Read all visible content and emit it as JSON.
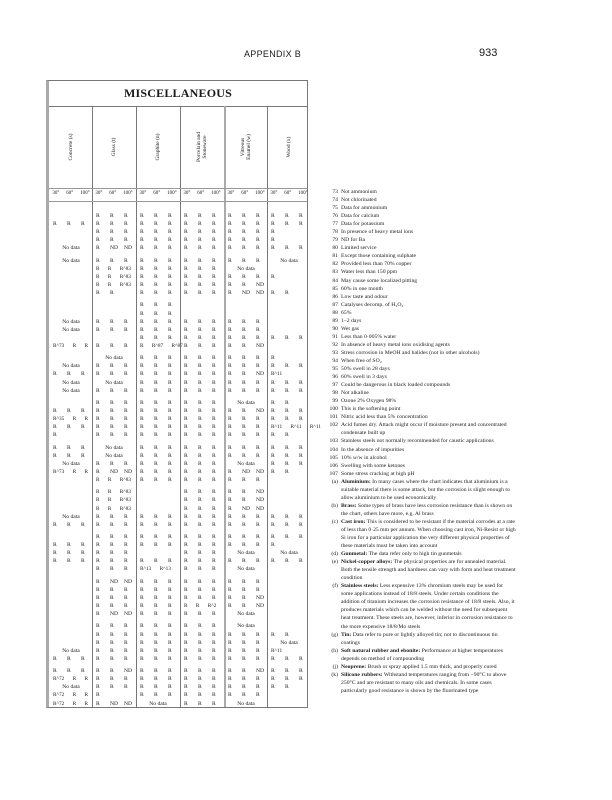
{
  "header": {
    "section": "APPENDIX   B",
    "page": "933"
  },
  "table": {
    "title": "MISCELLANEOUS",
    "columns": [
      "Concrete (s)",
      "Glass (t)",
      "Graphite (n)",
      "Porcelain and\nStoneware",
      "Vitreous\nEnamel (w)",
      "Wood (x)"
    ],
    "temperatures": [
      "30°",
      "60°",
      "100°"
    ],
    "rows": [
      [
        "",
        "R R R",
        "R R R",
        "R R R",
        "R R R",
        "R R R"
      ],
      [
        "R R R",
        "R R R",
        "R R R",
        "R R R",
        "R R R",
        "R R R"
      ],
      [
        "",
        "R R R",
        "R R R",
        "R R R",
        "R R R",
        "R"
      ],
      [
        "",
        "R R R",
        "R R R",
        "R R R",
        "R R R",
        "R"
      ],
      [
        "No data",
        "R ND ND",
        "R R R",
        "R R R",
        "R R R",
        "R R R"
      ],
      [
        "No data",
        "R R R",
        "R R R",
        "R R R",
        "R R R",
        "No data"
      ],
      [
        "",
        "R R R^83",
        "R R R",
        "R R R",
        "No data",
        ""
      ],
      [
        "",
        "R R R^83",
        "R R R",
        "R R R",
        "R R R",
        "R"
      ],
      [
        "",
        "R R R^83",
        "R R R",
        "R R R",
        "R R ND",
        ""
      ],
      [
        "",
        "R R",
        "R R R",
        "R R R",
        "R ND ND",
        "R R"
      ],
      [
        "",
        "",
        "R R R",
        "",
        "",
        ""
      ],
      [
        "",
        "",
        "R R R",
        "",
        "",
        ""
      ],
      [
        "No data",
        "R R R",
        "R R R",
        "R R R",
        "R R R",
        ""
      ],
      [
        "No data",
        "R R R",
        "R R R",
        "R R R",
        "R R R",
        ""
      ],
      [
        "",
        "",
        "R R R",
        "R R R",
        "R R R",
        "R R R"
      ],
      [
        "R^73 R R",
        "R R R",
        "R R^87 R^87",
        "R R R",
        "R R ND",
        ""
      ],
      [
        "",
        "No data",
        "R R R",
        "R R R",
        "R R R",
        "R"
      ],
      [
        "No data",
        "R R R",
        "R R R",
        "R R R",
        "R R R",
        "R R R"
      ],
      [
        "R R R",
        "R R R",
        "R R R",
        "R R R",
        "R R ND",
        "R^11"
      ],
      [
        "No data",
        "No data",
        "R R R",
        "R R R",
        "R R R",
        "R R R"
      ],
      [
        "No data",
        "R R R",
        "R R R",
        "R R R",
        "R R R",
        "R R R"
      ],
      [
        "",
        "R R R",
        "R R R",
        "R R R",
        "No data",
        "R R"
      ],
      [
        "R R R",
        "R R R",
        "R R R",
        "R R R",
        "R R ND",
        "R R R"
      ],
      [
        "R^35 R R",
        "R R R",
        "R R R",
        "R R R",
        "R R R",
        "R R R"
      ],
      [
        "R R R",
        "R R R",
        "R R R",
        "R R R",
        "R R R",
        "R^11 R^11 R^11"
      ],
      [
        "R",
        "R R R",
        "R R R",
        "R R R",
        "R R R",
        "R R"
      ],
      [
        "R R R",
        "No data",
        "R R R",
        "R R R",
        "R R R",
        "R R R"
      ],
      [
        "R R R",
        "No data",
        "R R R",
        "R R R",
        "R R R",
        "R R R"
      ],
      [
        "No data",
        "R R R",
        "R R R",
        "R R R",
        "No data",
        "R R R"
      ],
      [
        "R^73 R R",
        "R ND ND",
        "R R R",
        "R R R",
        "R ND ND",
        "R R"
      ],
      [
        "",
        "R R R^83",
        "R R R",
        "R R R",
        "R R R",
        ""
      ],
      [
        "",
        "R R R^83",
        "",
        "R R R",
        "R R ND",
        ""
      ],
      [
        "",
        "R R R^83",
        "",
        "R R R",
        "R R ND",
        ""
      ],
      [
        "",
        "R R R^83",
        "",
        "R R R",
        "R ND ND",
        ""
      ],
      [
        "No data",
        "R R R",
        "R R R",
        "R R R",
        "R R R",
        "R R R"
      ],
      [
        "R R R",
        "R R R",
        "R R R",
        "R R R",
        "R R R",
        "R R R"
      ],
      [
        "",
        "R R R",
        "R R R",
        "R R R",
        "R R R",
        "R R R"
      ],
      [
        "R R R",
        "R R R",
        "R R R",
        "R R R",
        "R R R",
        "R"
      ],
      [
        "R R R",
        "R R R",
        "",
        "R R R",
        "No data",
        "No data"
      ],
      [
        "R R R",
        "R R R",
        "R R R",
        "R R R",
        "R R R",
        "R R R"
      ],
      [
        "",
        "R R R",
        "R^13 R^13",
        "R R R",
        "No data",
        ""
      ],
      [
        "",
        "R ND ND",
        "R R R",
        "R R R",
        "R R R",
        ""
      ],
      [
        "",
        "R R R",
        "R R R",
        "R R R",
        "R R R",
        ""
      ],
      [
        "",
        "R R R",
        "R R R",
        "R R R",
        "R R ND",
        ""
      ],
      [
        "",
        "R R R",
        "R R R",
        "R R R^2",
        "R R ND",
        ""
      ],
      [
        "",
        "R ND ND",
        "R R R",
        "R R R",
        "No data",
        ""
      ],
      [
        "",
        "R R R",
        "R R R",
        "R R R",
        "No data",
        ""
      ],
      [
        "",
        "R R R",
        "R R R",
        "R R R",
        "R R R",
        "R R"
      ],
      [
        "",
        "R R R",
        "R R R",
        "R R R",
        "R R R",
        "No data"
      ],
      [
        "No data",
        "R R R",
        "R R R",
        "R R R",
        "R R R",
        "R^11"
      ],
      [
        "R R R",
        "R R R",
        "R R R",
        "R R R",
        "R R R",
        "R R R"
      ],
      [
        "R R R",
        "R R ND",
        "R R R",
        "R R R",
        "R R ND",
        "R R R"
      ],
      [
        "R^72 R R",
        "R R R",
        "R R R",
        "R R R",
        "R R R",
        "R R R"
      ],
      [
        "No data",
        "R R R",
        "R R R",
        "R R R",
        "R R R",
        "R R"
      ],
      [
        "R^72 R R",
        "R",
        "R R R",
        "R R R",
        "R R R",
        ""
      ],
      [
        "R^72 R R",
        "R ND ND",
        "No data",
        "R R R",
        "No data",
        ""
      ]
    ]
  },
  "notes": [
    {
      "n": "73",
      "t": "Not ammonium"
    },
    {
      "n": "74",
      "t": "Not chlorinated"
    },
    {
      "n": "75",
      "t": "Data for ammonium"
    },
    {
      "n": "76",
      "t": "Data for calcium"
    },
    {
      "n": "77",
      "t": "Data for potassium"
    },
    {
      "n": "78",
      "t": "In presence of heavy metal ions"
    },
    {
      "n": "79",
      "t": "ND for Ba"
    },
    {
      "n": "80",
      "t": "Limited service"
    },
    {
      "n": "81",
      "t": "Except those containing sulphate"
    },
    {
      "n": "82",
      "t": "Provided less than 70% copper"
    },
    {
      "n": "83",
      "t": "Water less than 150 ppm"
    },
    {
      "n": "84",
      "t": "May cause some localized pitting"
    },
    {
      "n": "85",
      "t": "60% in one month"
    },
    {
      "n": "86",
      "t": "Low taste and odour"
    },
    {
      "n": "87",
      "t": "Catalyses decomp. of H₂O₂"
    },
    {
      "n": "88",
      "t": "65%"
    },
    {
      "n": "89",
      "t": "1–2 days"
    },
    {
      "n": "90",
      "t": "Wet gas"
    },
    {
      "n": "91",
      "t": "Less than 0·005% water"
    },
    {
      "n": "92",
      "t": "In absence of heavy metal ions oxidising agents"
    },
    {
      "n": "93",
      "t": "Stress corrosion in MeOH and halides (not in other alcohols)"
    },
    {
      "n": "94",
      "t": "When free of SO₂"
    },
    {
      "n": "95",
      "t": "50% swell in 28 days"
    },
    {
      "n": "96",
      "t": "60% swell in 3 days"
    },
    {
      "n": "97",
      "t": "Could be dangerous in black loaded compounds"
    },
    {
      "n": "98",
      "t": "Not alkaline"
    },
    {
      "n": "99",
      "t": "Ozone 2% Oxygen 98%"
    },
    {
      "n": "100",
      "t": "This is the softening point"
    },
    {
      "n": "101",
      "t": "Nitric acid less than 5% concentration"
    },
    {
      "n": "102",
      "t": "Acid fumes dry. Attack might occur if moisture present and concentrated condensate built up"
    },
    {
      "n": "103",
      "t": "Stainless steels not normally recommended for caustic applications"
    },
    {
      "n": "104",
      "t": "In the absence of impurities"
    },
    {
      "n": "105",
      "t": "10% w/w in alcohol"
    },
    {
      "n": "106",
      "t": "Swelling with some ketones"
    },
    {
      "n": "107",
      "t": "Some stress cracking at high pH"
    },
    {
      "n": "(a)",
      "b": "Aluminium:",
      "t": "In many cases where the chart indicates that aluminium is a suitable material there is some attack, but the corrosion is slight enough to allow aluminium to be used economically"
    },
    {
      "n": "(b)",
      "b": "Brass:",
      "t": "Some types of brass have less corrosion resistance than is shown on the chart, others have more, e.g. Al brass"
    },
    {
      "n": "(c)",
      "b": "Cast iron:",
      "t": "This is considered to be resistant if the material corrodes at a rate of less than 0·25 mm per annum. When choosing cast iron, Ni-Resist or high Si iron for a particular application the very different physical properties of these materials must be taken into account"
    },
    {
      "n": "(d)",
      "b": "Gunmetal:",
      "t": "The data refer only to high tin gunmetals"
    },
    {
      "n": "(e)",
      "b": "Nickel-copper alloys:",
      "t": "The physical properties are for annealed material. Both the tensile strength and hardness can vary with form and heat treatment condition"
    },
    {
      "n": "(f)",
      "b": "Stainless steels:",
      "t": "Less expensive 13% chromium steels may be used for some applications instead of 18/8 steels. Under certain conditions the addition of titanium increases the corrosion resistance of 18/8 steels. Also, it produces materials which can be welded without the need for subsequent heat treatment. These steels are, however, inferior in corrosion resistance to the more expensive 18/8/Mo steels"
    },
    {
      "n": "(g)",
      "b": "Tin:",
      "t": "Data refer to pure or lightly alloyed tin; not to discontinuous tin coatings"
    },
    {
      "n": "(h)",
      "b": "Soft natural rubber and ebonite:",
      "t": "Performance at higher temperatures depends on method of compounding"
    },
    {
      "n": "(j)",
      "b": "Neoprene:",
      "t": "Brush or spray applied 1.5 mm thick, and properly cured"
    },
    {
      "n": "(k)",
      "b": "Silicone rubbers:",
      "t": "Withstand temperatures ranging from −90°C to above 250°C and are resistant to many oils and chemicals. In some cases particularly good resistance is shown by the fluorinated type"
    }
  ]
}
